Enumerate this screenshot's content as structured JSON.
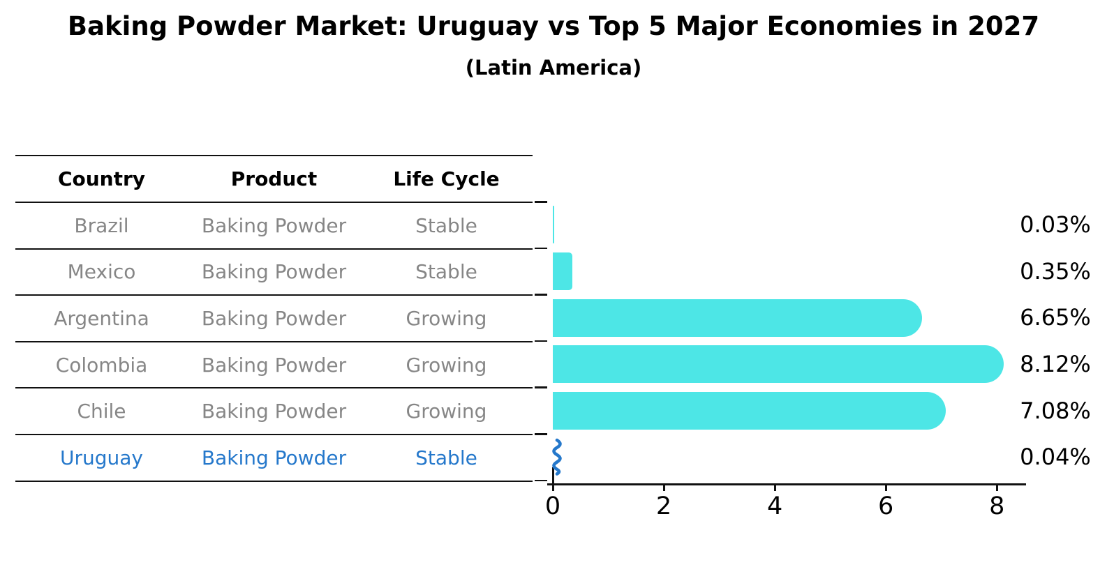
{
  "header": {
    "title": "Baking Powder Market: Uruguay vs Top 5 Major Economies in 2027",
    "subtitle": "(Latin America)"
  },
  "table": {
    "headers": [
      "Country",
      "Product",
      "Life Cycle"
    ],
    "rows": [
      {
        "country": "Brazil",
        "product": "Baking Powder",
        "life_cycle": "Stable",
        "highlighted": false
      },
      {
        "country": "Mexico",
        "product": "Baking Powder",
        "life_cycle": "Stable",
        "highlighted": false
      },
      {
        "country": "Argentina",
        "product": "Baking Powder",
        "life_cycle": "Growing",
        "highlighted": false
      },
      {
        "country": "Colombia",
        "product": "Baking Powder",
        "life_cycle": "Growing",
        "highlighted": false
      },
      {
        "country": "Chile",
        "product": "Baking Powder",
        "life_cycle": "Growing",
        "highlighted": false
      },
      {
        "country": "Uruguay",
        "product": "Baking Powder",
        "life_cycle": "Stable",
        "highlighted": true
      }
    ]
  },
  "chart_data": {
    "type": "bar",
    "orientation": "horizontal",
    "title": "Baking Powder Market: Uruguay vs Top 5 Major Economies in 2027",
    "subtitle": "(Latin America)",
    "categories": [
      "Brazil",
      "Mexico",
      "Argentina",
      "Colombia",
      "Chile",
      "Uruguay"
    ],
    "values": [
      0.03,
      0.35,
      6.65,
      8.12,
      7.08,
      0.04
    ],
    "value_labels": [
      "0.03%",
      "0.35%",
      "6.65%",
      "8.12%",
      "7.08%",
      "0.04%"
    ],
    "unit": "%",
    "xlabel": "",
    "ylabel": "",
    "xticks": [
      0,
      2,
      4,
      6,
      8
    ],
    "xtick_labels": [
      "0",
      "2",
      "4",
      "6",
      "8"
    ],
    "xlim": [
      0,
      8.5
    ],
    "grid": false,
    "legend": false,
    "bar_color": "#4de6e6",
    "highlight_color": "#2578cb",
    "highlight_index": 5,
    "value_label_position": "right"
  }
}
